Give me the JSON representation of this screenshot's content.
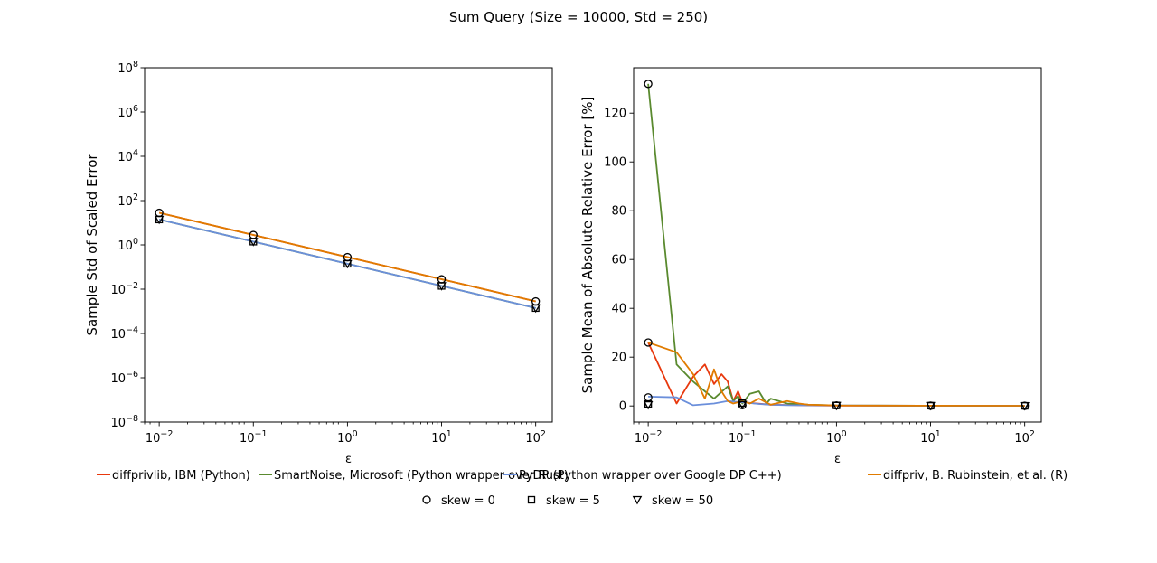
{
  "figure": {
    "title": "Sum Query (Size = 10000, Std = 250)"
  },
  "legend": {
    "series": [
      {
        "label": "diffprivlib, IBM (Python)",
        "color": "#e8380d"
      },
      {
        "label": "SmartNoise, Microsoft (Python wrapper over Rust)",
        "color": "#5a8a2f"
      },
      {
        "label": "PyDP (Python wrapper over Google DP C++)",
        "color": "#6b8fdb"
      },
      {
        "label": "diffpriv, B. Rubinstein, et al. (R)",
        "color": "#e07b00"
      }
    ],
    "markers": [
      {
        "label": "skew = 0",
        "marker": "circle"
      },
      {
        "label": "skew = 5",
        "marker": "square"
      },
      {
        "label": "skew = 50",
        "marker": "triangle-down"
      }
    ]
  },
  "chart_data": [
    {
      "type": "line",
      "xlabel": "ε",
      "ylabel": "Sample Std of Scaled Error",
      "xscale": "log",
      "yscale": "log",
      "xlim": [
        0.007,
        150
      ],
      "ylim": [
        1e-08,
        100000000.0
      ],
      "x_ticks": [
        {
          "v": 0.01,
          "e": "−2"
        },
        {
          "v": 0.1,
          "e": "−1"
        },
        {
          "v": 1,
          "e": "0"
        },
        {
          "v": 10,
          "e": "1"
        },
        {
          "v": 100,
          "e": "2"
        }
      ],
      "y_ticks": [
        {
          "v": 1e-08,
          "e": "−8"
        },
        {
          "v": 1e-06,
          "e": "−6"
        },
        {
          "v": 0.0001,
          "e": "−4"
        },
        {
          "v": 0.01,
          "e": "−2"
        },
        {
          "v": 1,
          "e": "0"
        },
        {
          "v": 100,
          "e": "2"
        },
        {
          "v": 10000.0,
          "e": "4"
        },
        {
          "v": 1000000.0,
          "e": "6"
        },
        {
          "v": 100000000.0,
          "e": "8"
        }
      ],
      "x": [
        0.01,
        0.1,
        1,
        10,
        100
      ],
      "series": [
        {
          "name": "diffprivlib, IBM (Python)",
          "color": "#e8380d",
          "values": [
            28,
            2.8,
            0.28,
            0.028,
            0.0028
          ]
        },
        {
          "name": "SmartNoise, Microsoft (Python wrapper over Rust)",
          "color": "#5a8a2f",
          "values": [
            14,
            1.4,
            0.14,
            0.014,
            0.0014
          ]
        },
        {
          "name": "PyDP (Python wrapper over Google DP C++)",
          "color": "#6b8fdb",
          "values": [
            14,
            1.4,
            0.14,
            0.014,
            0.0014
          ]
        },
        {
          "name": "diffpriv, B. Rubinstein, et al. (R)",
          "color": "#e07b00",
          "values": [
            28,
            2.8,
            0.28,
            0.028,
            0.0028
          ]
        }
      ],
      "markers": [
        {
          "marker": "circle",
          "x": [
            0.01,
            0.1,
            1,
            10,
            100
          ],
          "y": [
            28,
            2.8,
            0.28,
            0.028,
            0.0028
          ]
        },
        {
          "marker": "square",
          "x": [
            0.01,
            0.1,
            1,
            10,
            100
          ],
          "y": [
            14,
            1.4,
            0.14,
            0.014,
            0.0014
          ]
        },
        {
          "marker": "triangle-down",
          "x": [
            0.01,
            0.1,
            1,
            10,
            100
          ],
          "y": [
            14,
            1.4,
            0.14,
            0.014,
            0.0014
          ]
        }
      ]
    },
    {
      "type": "line",
      "xlabel": "ε",
      "ylabel": "Sample Mean of Absolute Relative Error [%]",
      "xscale": "log",
      "yscale": "linear",
      "xlim": [
        0.007,
        150
      ],
      "ylim": [
        -6.6,
        138.6
      ],
      "x_ticks": [
        {
          "v": 0.01,
          "e": "−2"
        },
        {
          "v": 0.1,
          "e": "−1"
        },
        {
          "v": 1,
          "e": "0"
        },
        {
          "v": 10,
          "e": "1"
        },
        {
          "v": 100,
          "e": "2"
        }
      ],
      "y_ticks": [
        {
          "v": 0,
          "t": "0"
        },
        {
          "v": 20,
          "t": "20"
        },
        {
          "v": 40,
          "t": "40"
        },
        {
          "v": 60,
          "t": "60"
        },
        {
          "v": 80,
          "t": "80"
        },
        {
          "v": 100,
          "t": "100"
        },
        {
          "v": 120,
          "t": "120"
        }
      ],
      "series": [
        {
          "name": "diffprivlib, IBM (Python)",
          "color": "#e8380d",
          "x": [
            0.01,
            0.02,
            0.03,
            0.04,
            0.05,
            0.06,
            0.07,
            0.08,
            0.09,
            0.1,
            0.2,
            0.3,
            0.5,
            1,
            10,
            100
          ],
          "values": [
            26,
            1,
            12,
            17,
            9,
            13,
            10,
            2,
            6,
            1.5,
            0.5,
            0.4,
            0.2,
            0.1,
            0.05,
            0.02
          ]
        },
        {
          "name": "SmartNoise, Microsoft (Python wrapper over Rust)",
          "color": "#5a8a2f",
          "x": [
            0.01,
            0.02,
            0.03,
            0.04,
            0.05,
            0.07,
            0.08,
            0.09,
            0.1,
            0.12,
            0.15,
            0.18,
            0.2,
            0.3,
            0.5,
            1,
            10,
            100
          ],
          "values": [
            132,
            17,
            10,
            6,
            3,
            8,
            2,
            4,
            1,
            5,
            6,
            1,
            3,
            1,
            0.5,
            0.2,
            0.1,
            0.05
          ]
        },
        {
          "name": "PyDP (Python wrapper over Google DP C++)",
          "color": "#6b8fdb",
          "x": [
            0.01,
            0.02,
            0.03,
            0.05,
            0.07,
            0.1,
            0.15,
            0.2,
            0.3,
            1,
            10,
            100
          ],
          "values": [
            3.8,
            3.5,
            0.3,
            1,
            2,
            1.5,
            0.8,
            0.5,
            0.3,
            0.2,
            0.1,
            0.05
          ]
        },
        {
          "name": "diffpriv, B. Rubinstein, et al. (R)",
          "color": "#e07b00",
          "x": [
            0.01,
            0.02,
            0.03,
            0.04,
            0.05,
            0.06,
            0.07,
            0.08,
            0.1,
            0.12,
            0.15,
            0.2,
            0.3,
            0.4,
            0.5,
            1,
            10,
            100
          ],
          "values": [
            26,
            22,
            13,
            3,
            15,
            6,
            2,
            1,
            2,
            1,
            3,
            0.5,
            2,
            1,
            0.5,
            0.2,
            0.1,
            0.05
          ]
        }
      ],
      "markers": [
        {
          "marker": "circle",
          "x": [
            0.01,
            0.01,
            0.01,
            0.1,
            1,
            10,
            100
          ],
          "y": [
            132,
            26,
            3.5,
            0.3,
            0.2,
            0.1,
            0.05
          ]
        },
        {
          "marker": "square",
          "x": [
            0.01,
            0.1,
            1,
            10,
            100
          ],
          "y": [
            0.8,
            1.2,
            0.2,
            0.1,
            0.05
          ]
        },
        {
          "marker": "triangle-down",
          "x": [
            0.01,
            0.1,
            1,
            10,
            100
          ],
          "y": [
            0.4,
            0.5,
            0.1,
            0.05,
            0.02
          ]
        }
      ]
    }
  ]
}
